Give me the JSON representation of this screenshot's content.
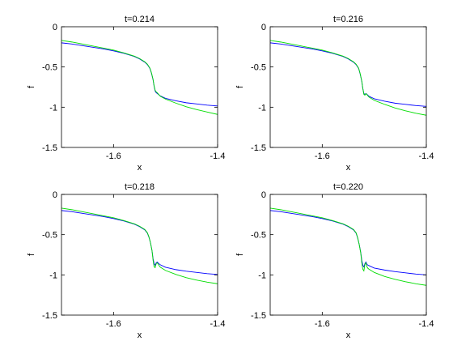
{
  "chart_data": [
    {
      "type": "line",
      "title": "t=0.214",
      "xlabel": "x",
      "ylabel": "f",
      "xlim": [
        -1.7,
        -1.4
      ],
      "ylim": [
        -1.5,
        0
      ],
      "xticks": [
        "-1.6",
        "-1.4"
      ],
      "yticks": [
        "0",
        "-0.5",
        "-1",
        "-1.5"
      ],
      "grid": false,
      "series": [
        {
          "color": "#0000ff",
          "x": [
            -1.7,
            -1.68,
            -1.66,
            -1.64,
            -1.62,
            -1.6,
            -1.58,
            -1.56,
            -1.55,
            -1.54,
            -1.535,
            -1.53,
            -1.527,
            -1.524,
            -1.522,
            -1.52,
            -1.518,
            -1.516,
            -1.514,
            -1.51,
            -1.5,
            -1.48,
            -1.46,
            -1.44,
            -1.42,
            -1.4
          ],
          "y": [
            -0.2,
            -0.215,
            -0.235,
            -0.255,
            -0.275,
            -0.3,
            -0.33,
            -0.37,
            -0.4,
            -0.44,
            -0.47,
            -0.52,
            -0.58,
            -0.66,
            -0.74,
            -0.8,
            -0.82,
            -0.83,
            -0.84,
            -0.86,
            -0.89,
            -0.92,
            -0.945,
            -0.96,
            -0.975,
            -0.985
          ]
        },
        {
          "color": "#00dd00",
          "x": [
            -1.7,
            -1.68,
            -1.66,
            -1.64,
            -1.62,
            -1.6,
            -1.58,
            -1.56,
            -1.55,
            -1.54,
            -1.535,
            -1.53,
            -1.527,
            -1.524,
            -1.522,
            -1.52,
            -1.518,
            -1.516,
            -1.514,
            -1.51,
            -1.5,
            -1.48,
            -1.46,
            -1.44,
            -1.42,
            -1.4
          ],
          "y": [
            -0.17,
            -0.19,
            -0.215,
            -0.24,
            -0.265,
            -0.29,
            -0.325,
            -0.365,
            -0.395,
            -0.435,
            -0.465,
            -0.515,
            -0.575,
            -0.655,
            -0.735,
            -0.79,
            -0.81,
            -0.82,
            -0.835,
            -0.865,
            -0.9,
            -0.95,
            -0.995,
            -1.03,
            -1.06,
            -1.09
          ]
        }
      ]
    },
    {
      "type": "line",
      "title": "t=0.216",
      "xlabel": "x",
      "ylabel": "f",
      "xlim": [
        -1.7,
        -1.4
      ],
      "ylim": [
        -1.5,
        0
      ],
      "xticks": [
        "-1.6",
        "-1.4"
      ],
      "yticks": [
        "0",
        "-0.5",
        "-1",
        "-1.5"
      ],
      "grid": false,
      "series": [
        {
          "color": "#0000ff",
          "x": [
            -1.7,
            -1.68,
            -1.66,
            -1.64,
            -1.62,
            -1.6,
            -1.58,
            -1.56,
            -1.55,
            -1.54,
            -1.535,
            -1.53,
            -1.527,
            -1.524,
            -1.522,
            -1.52,
            -1.518,
            -1.516,
            -1.514,
            -1.51,
            -1.5,
            -1.48,
            -1.46,
            -1.44,
            -1.42,
            -1.4
          ],
          "y": [
            -0.2,
            -0.215,
            -0.235,
            -0.255,
            -0.275,
            -0.3,
            -0.33,
            -0.37,
            -0.4,
            -0.44,
            -0.47,
            -0.52,
            -0.59,
            -0.68,
            -0.77,
            -0.83,
            -0.84,
            -0.83,
            -0.84,
            -0.865,
            -0.895,
            -0.925,
            -0.95,
            -0.965,
            -0.98,
            -0.99
          ]
        },
        {
          "color": "#00dd00",
          "x": [
            -1.7,
            -1.68,
            -1.66,
            -1.64,
            -1.62,
            -1.6,
            -1.58,
            -1.56,
            -1.55,
            -1.54,
            -1.535,
            -1.53,
            -1.527,
            -1.524,
            -1.522,
            -1.52,
            -1.518,
            -1.516,
            -1.514,
            -1.51,
            -1.5,
            -1.48,
            -1.46,
            -1.44,
            -1.42,
            -1.4
          ],
          "y": [
            -0.17,
            -0.19,
            -0.215,
            -0.24,
            -0.265,
            -0.29,
            -0.325,
            -0.365,
            -0.395,
            -0.435,
            -0.465,
            -0.515,
            -0.585,
            -0.675,
            -0.765,
            -0.84,
            -0.85,
            -0.83,
            -0.845,
            -0.875,
            -0.915,
            -0.965,
            -1.01,
            -1.045,
            -1.075,
            -1.1
          ]
        }
      ]
    },
    {
      "type": "line",
      "title": "t=0.218",
      "xlabel": "x",
      "ylabel": "f",
      "xlim": [
        -1.7,
        -1.4
      ],
      "ylim": [
        -1.5,
        0
      ],
      "xticks": [
        "-1.6",
        "-1.4"
      ],
      "yticks": [
        "0",
        "-0.5",
        "-1",
        "-1.5"
      ],
      "grid": false,
      "series": [
        {
          "color": "#0000ff",
          "x": [
            -1.7,
            -1.68,
            -1.66,
            -1.64,
            -1.62,
            -1.6,
            -1.58,
            -1.56,
            -1.55,
            -1.54,
            -1.535,
            -1.532,
            -1.529,
            -1.526,
            -1.524,
            -1.522,
            -1.52,
            -1.518,
            -1.516,
            -1.513,
            -1.51,
            -1.5,
            -1.48,
            -1.46,
            -1.44,
            -1.42,
            -1.4
          ],
          "y": [
            -0.2,
            -0.215,
            -0.235,
            -0.255,
            -0.275,
            -0.3,
            -0.33,
            -0.37,
            -0.4,
            -0.44,
            -0.48,
            -0.53,
            -0.6,
            -0.7,
            -0.8,
            -0.86,
            -0.88,
            -0.85,
            -0.84,
            -0.86,
            -0.875,
            -0.905,
            -0.935,
            -0.955,
            -0.97,
            -0.985,
            -0.995
          ]
        },
        {
          "color": "#00dd00",
          "x": [
            -1.7,
            -1.68,
            -1.66,
            -1.64,
            -1.62,
            -1.6,
            -1.58,
            -1.56,
            -1.55,
            -1.54,
            -1.535,
            -1.532,
            -1.529,
            -1.526,
            -1.524,
            -1.522,
            -1.52,
            -1.518,
            -1.516,
            -1.513,
            -1.51,
            -1.5,
            -1.48,
            -1.46,
            -1.44,
            -1.42,
            -1.4
          ],
          "y": [
            -0.17,
            -0.19,
            -0.215,
            -0.24,
            -0.265,
            -0.29,
            -0.325,
            -0.365,
            -0.395,
            -0.435,
            -0.475,
            -0.525,
            -0.6,
            -0.7,
            -0.82,
            -0.9,
            -0.91,
            -0.86,
            -0.85,
            -0.88,
            -0.905,
            -0.945,
            -0.995,
            -1.035,
            -1.065,
            -1.09,
            -1.11
          ]
        }
      ]
    },
    {
      "type": "line",
      "title": "t=0.220",
      "xlabel": "x",
      "ylabel": "f",
      "xlim": [
        -1.7,
        -1.4
      ],
      "ylim": [
        -1.5,
        0
      ],
      "xticks": [
        "-1.6",
        "-1.4"
      ],
      "yticks": [
        "0",
        "-0.5",
        "-1",
        "-1.5"
      ],
      "grid": false,
      "series": [
        {
          "color": "#0000ff",
          "x": [
            -1.7,
            -1.68,
            -1.66,
            -1.64,
            -1.62,
            -1.6,
            -1.58,
            -1.56,
            -1.55,
            -1.54,
            -1.535,
            -1.532,
            -1.529,
            -1.526,
            -1.524,
            -1.522,
            -1.52,
            -1.518,
            -1.516,
            -1.514,
            -1.512,
            -1.51,
            -1.5,
            -1.48,
            -1.46,
            -1.44,
            -1.42,
            -1.4
          ],
          "y": [
            -0.2,
            -0.215,
            -0.235,
            -0.255,
            -0.275,
            -0.3,
            -0.33,
            -0.37,
            -0.4,
            -0.44,
            -0.48,
            -0.54,
            -0.62,
            -0.72,
            -0.82,
            -0.88,
            -0.9,
            -0.86,
            -0.84,
            -0.87,
            -0.88,
            -0.885,
            -0.915,
            -0.94,
            -0.96,
            -0.975,
            -0.99,
            -1.0
          ]
        },
        {
          "color": "#00dd00",
          "x": [
            -1.7,
            -1.68,
            -1.66,
            -1.64,
            -1.62,
            -1.6,
            -1.58,
            -1.56,
            -1.55,
            -1.54,
            -1.535,
            -1.532,
            -1.529,
            -1.526,
            -1.524,
            -1.522,
            -1.52,
            -1.518,
            -1.516,
            -1.514,
            -1.512,
            -1.51,
            -1.5,
            -1.48,
            -1.46,
            -1.44,
            -1.42,
            -1.4
          ],
          "y": [
            -0.17,
            -0.19,
            -0.215,
            -0.24,
            -0.265,
            -0.29,
            -0.325,
            -0.365,
            -0.395,
            -0.435,
            -0.475,
            -0.535,
            -0.62,
            -0.73,
            -0.85,
            -0.93,
            -0.95,
            -0.87,
            -0.85,
            -0.9,
            -0.92,
            -0.93,
            -0.97,
            -1.02,
            -1.055,
            -1.085,
            -1.11,
            -1.13
          ]
        }
      ]
    }
  ]
}
